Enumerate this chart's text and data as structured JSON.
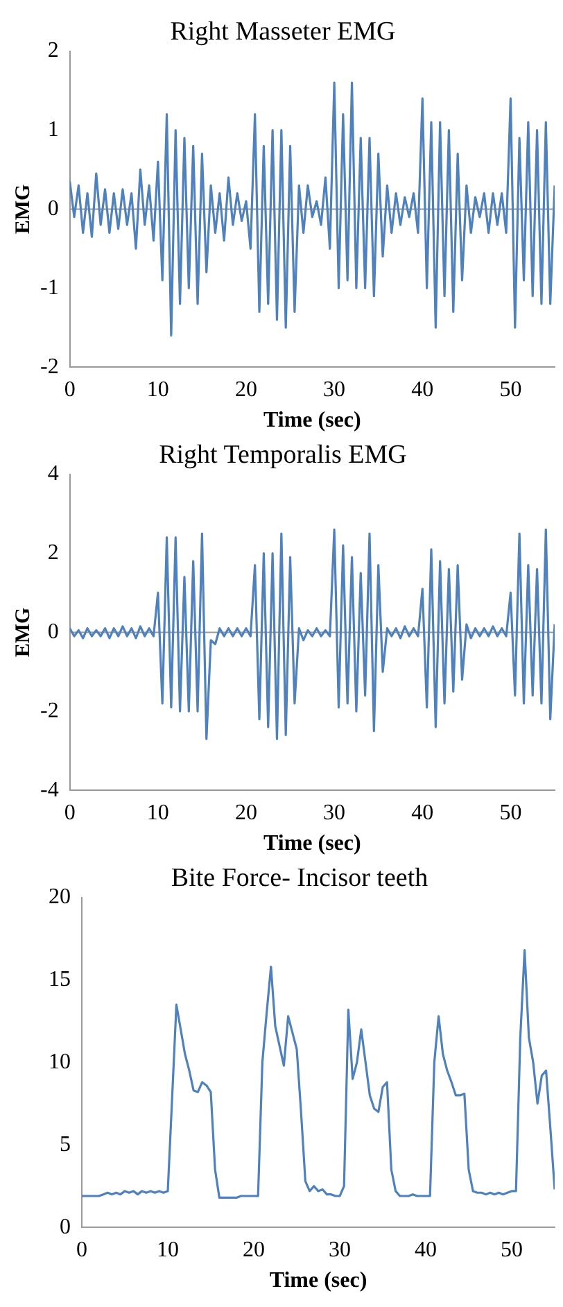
{
  "chart_data": [
    {
      "type": "line",
      "title": "Right Masseter EMG",
      "xlabel": "Time (sec)",
      "ylabel": "EMG",
      "xlim": [
        0,
        55
      ],
      "xticks": [
        0,
        10,
        20,
        30,
        40,
        50
      ],
      "ylim": [
        -2,
        2
      ],
      "yticks": [
        -2,
        -1,
        0,
        1,
        2
      ],
      "x": [
        0,
        0.5,
        1,
        1.5,
        2,
        2.5,
        3,
        3.5,
        4,
        4.5,
        5,
        5.5,
        6,
        6.5,
        7,
        7.5,
        8,
        8.5,
        9,
        9.5,
        10,
        10.5,
        11,
        11.5,
        12,
        12.5,
        13,
        13.5,
        14,
        14.5,
        15,
        15.5,
        16,
        16.5,
        17,
        17.5,
        18,
        18.5,
        19,
        19.5,
        20,
        20.5,
        21,
        21.5,
        22,
        22.5,
        23,
        23.5,
        24,
        24.5,
        25,
        25.5,
        26,
        26.5,
        27,
        27.5,
        28,
        28.5,
        29,
        29.5,
        30,
        30.5,
        31,
        31.5,
        32,
        32.5,
        33,
        33.5,
        34,
        34.5,
        35,
        35.5,
        36,
        36.5,
        37,
        37.5,
        38,
        38.5,
        39,
        39.5,
        40,
        40.5,
        41,
        41.5,
        42,
        42.5,
        43,
        43.5,
        44,
        44.5,
        45,
        45.5,
        46,
        46.5,
        47,
        47.5,
        48,
        48.5,
        49,
        49.5,
        50,
        50.5,
        51,
        51.5,
        52,
        52.5,
        53,
        53.5,
        54,
        54.5,
        55
      ],
      "series": [
        {
          "color": "#4f81bd",
          "values": [
            0.35,
            -0.1,
            0.3,
            -0.3,
            0.2,
            -0.35,
            0.45,
            -0.2,
            0.25,
            -0.3,
            0.2,
            -0.25,
            0.25,
            -0.2,
            0.2,
            -0.5,
            0.5,
            -0.2,
            0.3,
            -0.4,
            0.6,
            -0.9,
            1.2,
            -1.6,
            1.0,
            -1.2,
            0.9,
            -1.0,
            0.8,
            -1.2,
            0.7,
            -0.8,
            0.3,
            -0.3,
            0.2,
            -0.4,
            0.4,
            -0.2,
            0.2,
            -0.15,
            0.1,
            -0.5,
            1.2,
            -1.3,
            0.8,
            -1.2,
            1.0,
            -1.4,
            1.0,
            -1.5,
            0.8,
            -1.3,
            0.3,
            -0.3,
            0.3,
            -0.1,
            0.1,
            -0.2,
            0.4,
            -0.5,
            1.6,
            -1.0,
            1.2,
            -0.9,
            1.6,
            -1.0,
            0.9,
            -1.0,
            0.9,
            -1.1,
            0.7,
            -0.6,
            0.3,
            -0.3,
            0.2,
            -0.2,
            0.15,
            -0.1,
            0.2,
            -0.3,
            1.4,
            -1.0,
            1.1,
            -1.5,
            1.1,
            -1.1,
            1.0,
            -1.3,
            0.7,
            -0.9,
            0.3,
            -0.3,
            0.15,
            -0.1,
            0.2,
            -0.3,
            0.2,
            -0.2,
            0.2,
            -0.3,
            1.4,
            -1.5,
            0.9,
            -0.9,
            1.1,
            -1.1,
            1.0,
            -1.2,
            1.1,
            -1.2,
            0.3
          ]
        }
      ]
    },
    {
      "type": "line",
      "title": "Right Temporalis EMG",
      "xlabel": "Time (sec)",
      "ylabel": "EMG",
      "xlim": [
        0,
        55
      ],
      "xticks": [
        0,
        10,
        20,
        30,
        40,
        50
      ],
      "ylim": [
        -4,
        4
      ],
      "yticks": [
        -4,
        -2,
        0,
        2,
        4
      ],
      "x": [
        0,
        0.5,
        1,
        1.5,
        2,
        2.5,
        3,
        3.5,
        4,
        4.5,
        5,
        5.5,
        6,
        6.5,
        7,
        7.5,
        8,
        8.5,
        9,
        9.5,
        10,
        10.5,
        11,
        11.5,
        12,
        12.5,
        13,
        13.5,
        14,
        14.5,
        15,
        15.5,
        16,
        16.5,
        17,
        17.5,
        18,
        18.5,
        19,
        19.5,
        20,
        20.5,
        21,
        21.5,
        22,
        22.5,
        23,
        23.5,
        24,
        24.5,
        25,
        25.5,
        26,
        26.5,
        27,
        27.5,
        28,
        28.5,
        29,
        29.5,
        30,
        30.5,
        31,
        31.5,
        32,
        32.5,
        33,
        33.5,
        34,
        34.5,
        35,
        35.5,
        36,
        36.5,
        37,
        37.5,
        38,
        38.5,
        39,
        39.5,
        40,
        40.5,
        41,
        41.5,
        42,
        42.5,
        43,
        43.5,
        44,
        44.5,
        45,
        45.5,
        46,
        46.5,
        47,
        47.5,
        48,
        48.5,
        49,
        49.5,
        50,
        50.5,
        51,
        51.5,
        52,
        52.5,
        53,
        53.5,
        54,
        54.5,
        55
      ],
      "series": [
        {
          "color": "#4f81bd",
          "values": [
            0.1,
            -0.1,
            0.05,
            -0.15,
            0.1,
            -0.1,
            0.05,
            -0.1,
            0.1,
            -0.15,
            0.1,
            -0.1,
            0.15,
            -0.1,
            0.1,
            -0.15,
            0.15,
            -0.1,
            0.1,
            -0.1,
            1.0,
            -1.8,
            2.4,
            -1.9,
            2.4,
            -2.0,
            1.4,
            -2.0,
            1.8,
            -2.0,
            2.5,
            -2.7,
            -0.2,
            -0.3,
            0.1,
            -0.1,
            0.1,
            -0.1,
            0.1,
            -0.1,
            0.1,
            -0.1,
            1.7,
            -2.2,
            2.0,
            -2.4,
            2.0,
            -2.7,
            2.5,
            -2.6,
            1.9,
            -1.8,
            0.1,
            -0.2,
            0.05,
            -0.1,
            0.1,
            -0.1,
            0.05,
            -0.1,
            2.6,
            -1.9,
            2.2,
            -1.8,
            1.9,
            -2.0,
            1.5,
            -1.6,
            2.5,
            -2.5,
            1.7,
            -1.0,
            0.1,
            -0.1,
            0.1,
            -0.15,
            0.15,
            -0.1,
            0.1,
            -0.1,
            1.1,
            -1.9,
            2.1,
            -2.4,
            1.8,
            -1.8,
            1.6,
            -1.5,
            1.7,
            -1.2,
            0.2,
            -0.15,
            0.1,
            -0.1,
            0.1,
            -0.1,
            0.15,
            -0.1,
            0.1,
            -0.1,
            1.0,
            -1.6,
            2.5,
            -1.8,
            1.7,
            -1.6,
            1.6,
            -1.8,
            2.6,
            -2.2,
            0.2
          ]
        }
      ]
    },
    {
      "type": "line",
      "title": "Bite Force- Incisor teeth",
      "xlabel": "Time (sec)",
      "xlim": [
        0,
        55
      ],
      "xticks": [
        0,
        10,
        20,
        30,
        40,
        50
      ],
      "ylim": [
        0,
        20
      ],
      "yticks": [
        0,
        5,
        10,
        15,
        20
      ],
      "x": [
        0,
        0.5,
        1,
        1.5,
        2,
        2.5,
        3,
        3.5,
        4,
        4.5,
        5,
        5.5,
        6,
        6.5,
        7,
        7.5,
        8,
        8.5,
        9,
        9.5,
        10,
        10.5,
        11,
        11.5,
        12,
        12.5,
        13,
        13.5,
        14,
        14.5,
        15,
        15.5,
        16,
        16.5,
        17,
        17.5,
        18,
        18.5,
        19,
        19.5,
        20,
        20.5,
        21,
        21.5,
        22,
        22.5,
        23,
        23.5,
        24,
        24.5,
        25,
        25.5,
        26,
        26.5,
        27,
        27.5,
        28,
        28.5,
        29,
        29.5,
        30,
        30.5,
        31,
        31.5,
        32,
        32.5,
        33,
        33.5,
        34,
        34.5,
        35,
        35.5,
        36,
        36.5,
        37,
        37.5,
        38,
        38.5,
        39,
        39.5,
        40,
        40.5,
        41,
        41.5,
        42,
        42.5,
        43,
        43.5,
        44,
        44.5,
        45,
        45.5,
        46,
        46.5,
        47,
        47.5,
        48,
        48.5,
        49,
        49.5,
        50,
        50.5,
        51,
        51.5,
        52,
        52.5,
        53,
        53.5,
        54,
        54.5,
        55
      ],
      "series": [
        {
          "color": "#4f81bd",
          "values": [
            1.9,
            1.9,
            1.9,
            1.9,
            1.9,
            2.0,
            2.1,
            2.0,
            2.1,
            2.0,
            2.2,
            2.1,
            2.2,
            2.0,
            2.2,
            2.1,
            2.2,
            2.1,
            2.2,
            2.1,
            2.2,
            7.8,
            13.5,
            12,
            10.5,
            9.5,
            8.3,
            8.2,
            8.8,
            8.6,
            8.2,
            3.5,
            1.8,
            1.8,
            1.8,
            1.8,
            1.8,
            1.9,
            1.9,
            1.9,
            1.9,
            1.9,
            10,
            13,
            15.8,
            12.2,
            11,
            9.8,
            12.8,
            11.8,
            10.8,
            7,
            2.8,
            2.2,
            2.5,
            2.2,
            2.3,
            2.0,
            2.0,
            1.9,
            1.9,
            2.5,
            13.2,
            9,
            10,
            12,
            10,
            8,
            7.2,
            7.0,
            8.5,
            8.8,
            3.5,
            2.2,
            1.9,
            1.9,
            1.9,
            2.0,
            1.9,
            1.9,
            1.9,
            1.9,
            10,
            12.8,
            10.5,
            9.5,
            8.8,
            8,
            8.0,
            8.1,
            3.5,
            2.2,
            2.1,
            2.1,
            2.0,
            2.1,
            2.0,
            2.1,
            2.0,
            2.1,
            2.2,
            2.2,
            11.5,
            16.8,
            11.5,
            10,
            7.5,
            9.2,
            9.5,
            6,
            2.3
          ]
        }
      ]
    }
  ]
}
